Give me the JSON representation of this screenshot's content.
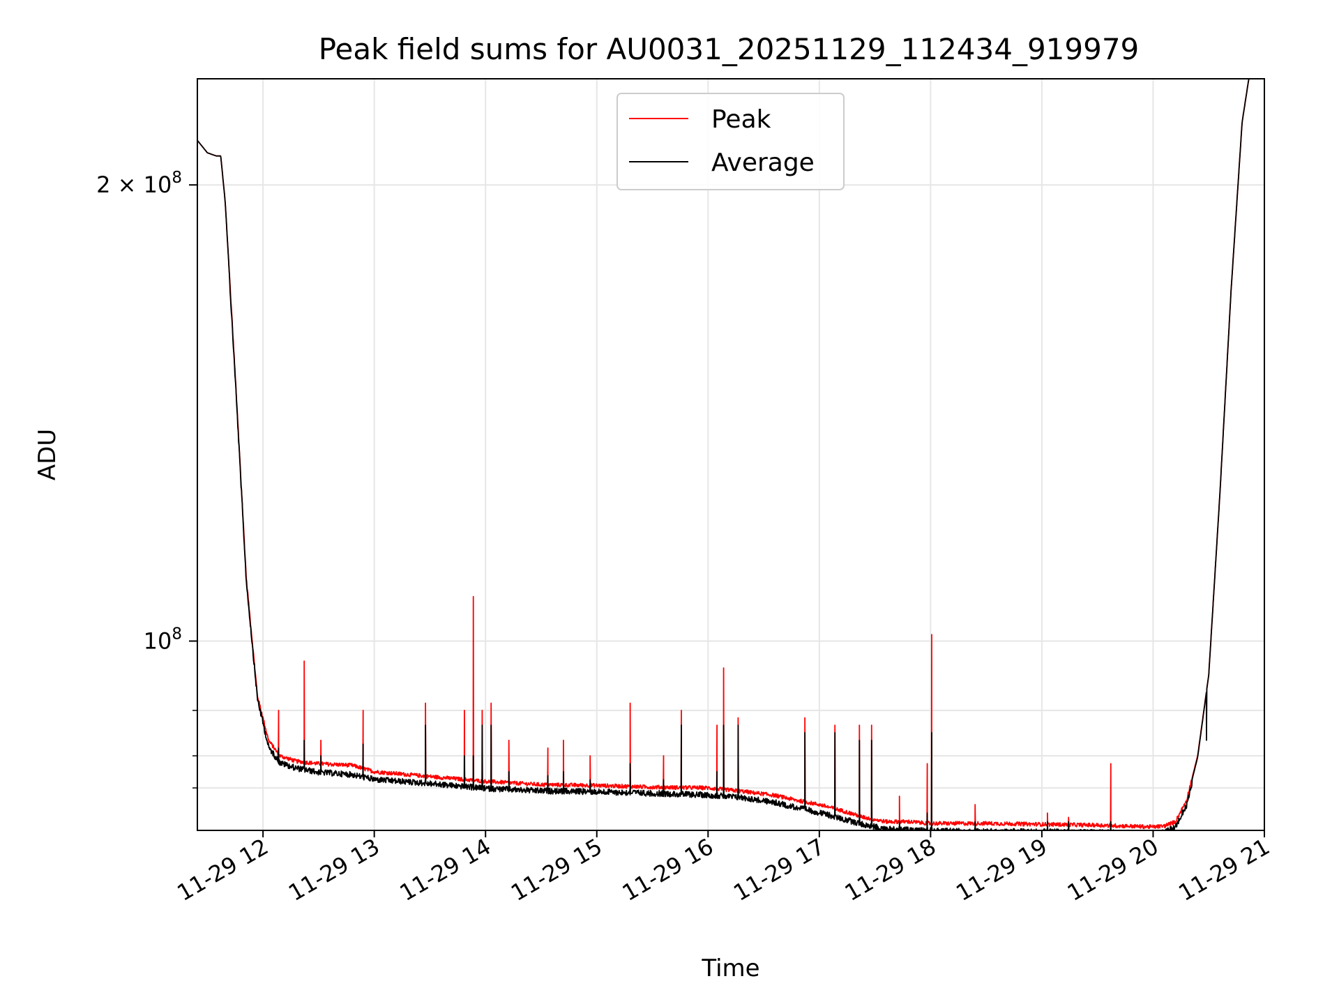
{
  "chart_data": {
    "type": "line",
    "title": "Peak field sums for AU0031_20251129_112434_919979",
    "xlabel": "Time",
    "ylabel": "ADU",
    "yscale": "log",
    "xlim_hours": [
      11.41,
      21.0
    ],
    "ylim": [
      75000000,
      235000000
    ],
    "grid": true,
    "legend_position": "top-center",
    "x_ticks": [
      {
        "value": 12,
        "label": "11-29 12"
      },
      {
        "value": 13,
        "label": "11-29 13"
      },
      {
        "value": 14,
        "label": "11-29 14"
      },
      {
        "value": 15,
        "label": "11-29 15"
      },
      {
        "value": 16,
        "label": "11-29 16"
      },
      {
        "value": 17,
        "label": "11-29 17"
      },
      {
        "value": 18,
        "label": "11-29 18"
      },
      {
        "value": 19,
        "label": "11-29 19"
      },
      {
        "value": 20,
        "label": "11-29 20"
      },
      {
        "value": 21,
        "label": "11-29 21"
      }
    ],
    "y_major_ticks": [
      {
        "value": 100000000,
        "base": "10",
        "exp": "8"
      },
      {
        "value": 200000000,
        "base": "2 × 10",
        "exp": "8"
      }
    ],
    "y_minor_ticks": [
      80000000,
      84000000,
      90000000
    ],
    "baseline": {
      "x": [
        11.41,
        11.5,
        11.58,
        11.62,
        11.66,
        11.75,
        11.85,
        11.95,
        12.05,
        12.15,
        12.3,
        12.5,
        12.8,
        13.0,
        13.5,
        14.0,
        14.5,
        15.0,
        15.5,
        16.0,
        16.3,
        16.6,
        16.8,
        17.0,
        17.2,
        17.4,
        17.6,
        17.8,
        18.0,
        18.5,
        19.0,
        19.5,
        20.0,
        20.1,
        20.2,
        20.3,
        20.4,
        20.5,
        20.6,
        20.7,
        20.8,
        20.86
      ],
      "peak": [
        214000000,
        210000000,
        209000000,
        209000000,
        195000000,
        150000000,
        110000000,
        92000000,
        86000000,
        84000000,
        83300000,
        83000000,
        82800000,
        82000000,
        81400000,
        80800000,
        80400000,
        80300000,
        80100000,
        80000000,
        79600000,
        79100000,
        78500000,
        78000000,
        77300000,
        76500000,
        76000000,
        76000000,
        75800000,
        75800000,
        75700000,
        75600000,
        75400000,
        75500000,
        76000000,
        78500000,
        84000000,
        95000000,
        125000000,
        170000000,
        220000000,
        235000000
      ],
      "average": [
        214000000,
        210000000,
        209000000,
        209000000,
        195000000,
        150000000,
        110000000,
        92000000,
        85500000,
        83500000,
        82800000,
        82300000,
        82000000,
        81400000,
        80900000,
        80300000,
        80000000,
        79900000,
        79700000,
        79500000,
        79200000,
        78600000,
        78000000,
        77400000,
        76700000,
        76000000,
        75500000,
        75400000,
        75300000,
        75200000,
        75200000,
        75100000,
        75000000,
        75100000,
        75700000,
        78300000,
        83800000,
        95000000,
        125000000,
        170000000,
        220000000,
        235000000
      ]
    },
    "spikes": [
      {
        "x": 12.14,
        "peak": 90000000,
        "average": 85000000
      },
      {
        "x": 12.37,
        "peak": 97000000,
        "average": 86000000
      },
      {
        "x": 12.52,
        "peak": 86000000,
        "average": 84000000
      },
      {
        "x": 12.9,
        "peak": 90000000,
        "average": 85500000
      },
      {
        "x": 13.46,
        "peak": 91000000,
        "average": 88000000
      },
      {
        "x": 13.81,
        "peak": 90000000,
        "average": 84000000
      },
      {
        "x": 13.89,
        "peak": 107000000,
        "average": 84000000
      },
      {
        "x": 13.97,
        "peak": 90000000,
        "average": 88000000
      },
      {
        "x": 14.05,
        "peak": 91000000,
        "average": 88000000
      },
      {
        "x": 14.21,
        "peak": 86000000,
        "average": 82000000
      },
      {
        "x": 14.56,
        "peak": 85000000,
        "average": 81500000
      },
      {
        "x": 14.7,
        "peak": 86000000,
        "average": 82000000
      },
      {
        "x": 14.94,
        "peak": 84000000,
        "average": 81000000
      },
      {
        "x": 15.3,
        "peak": 91000000,
        "average": 83000000
      },
      {
        "x": 15.6,
        "peak": 84000000,
        "average": 81000000
      },
      {
        "x": 15.76,
        "peak": 90000000,
        "average": 88000000
      },
      {
        "x": 16.08,
        "peak": 88000000,
        "average": 82000000
      },
      {
        "x": 16.14,
        "peak": 96000000,
        "average": 88000000
      },
      {
        "x": 16.27,
        "peak": 89000000,
        "average": 88000000
      },
      {
        "x": 16.87,
        "peak": 89000000,
        "average": 87000000
      },
      {
        "x": 17.14,
        "peak": 88000000,
        "average": 87000000
      },
      {
        "x": 17.36,
        "peak": 88000000,
        "average": 86000000
      },
      {
        "x": 17.47,
        "peak": 88000000,
        "average": 86000000
      },
      {
        "x": 17.72,
        "peak": 79000000,
        "average": 76000000
      },
      {
        "x": 17.97,
        "peak": 83000000,
        "average": 77000000
      },
      {
        "x": 18.01,
        "peak": 101000000,
        "average": 87000000
      },
      {
        "x": 18.4,
        "peak": 78000000,
        "average": 76000000
      },
      {
        "x": 19.05,
        "peak": 77000000,
        "average": 76000000
      },
      {
        "x": 19.24,
        "peak": 76500000,
        "average": 76000000
      },
      {
        "x": 19.62,
        "peak": 83000000,
        "average": 76000000
      },
      {
        "x": 20.48,
        "peak": 88000000,
        "average": 86000000
      }
    ],
    "series": [
      {
        "name": "Peak",
        "color": "#ff0000"
      },
      {
        "name": "Average",
        "color": "#000000"
      }
    ]
  }
}
